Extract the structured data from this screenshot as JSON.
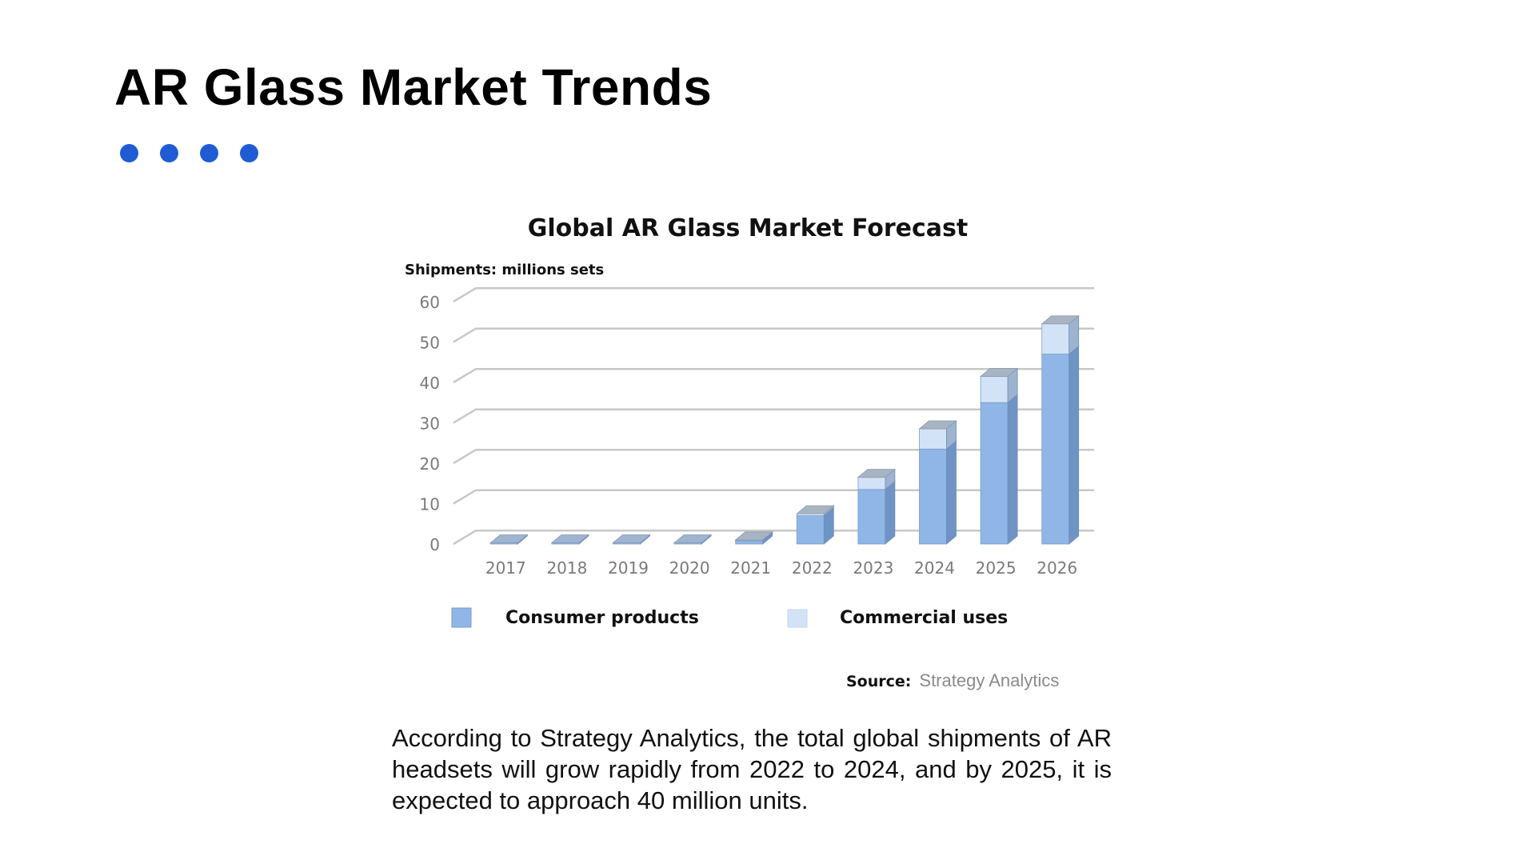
{
  "slide": {
    "title": "AR Glass Market Trends",
    "accent_color": "#1f5bd3",
    "dots": 4,
    "source_label": "Source:",
    "source_value": "Strategy Analytics",
    "caption": "According to Strategy Analytics, the total global shipments of AR headsets will grow rapidly from 2022 to 2024, and by 2025, it is expected to approach 40 million units."
  },
  "chart_data": {
    "type": "bar",
    "stacked": true,
    "style": "3d",
    "title": "Global AR Glass Market Forecast",
    "ylabel": "Shipments: millions sets",
    "xlabel": "",
    "categories": [
      "2017",
      "2018",
      "2019",
      "2020",
      "2021",
      "2022",
      "2023",
      "2024",
      "2025",
      "2026"
    ],
    "yticks": [
      0,
      10,
      20,
      30,
      40,
      50,
      60
    ],
    "ylim": [
      0,
      60
    ],
    "grid": true,
    "legend_position": "bottom",
    "series": [
      {
        "name": "Consumer products",
        "color": "#8fb6e6",
        "values": [
          0.3,
          0.3,
          0.3,
          0.3,
          0.8,
          7,
          13.5,
          23.5,
          35,
          47
        ]
      },
      {
        "name": "Commercial uses",
        "color": "#d3e3f7",
        "values": [
          0,
          0,
          0,
          0,
          0.2,
          0.5,
          3,
          5,
          6.5,
          7.5
        ]
      }
    ]
  }
}
